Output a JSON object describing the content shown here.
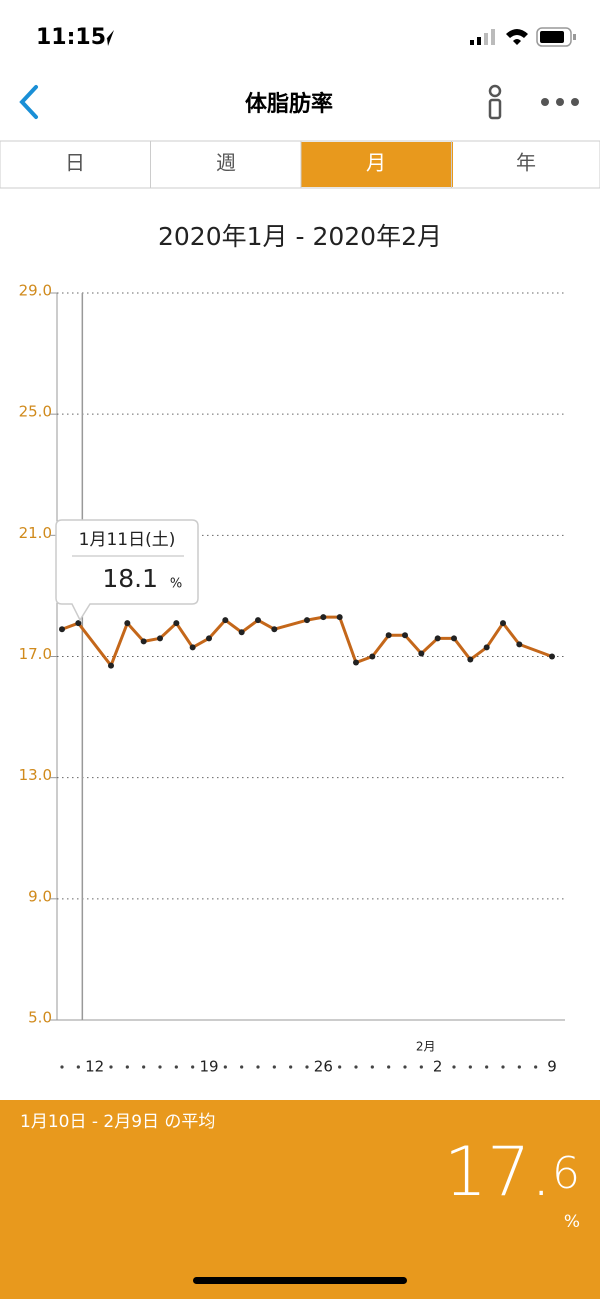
{
  "status_bar": {
    "time": "11:15"
  },
  "nav": {
    "title": "体脂肪率"
  },
  "tabs": [
    "日",
    "週",
    "月",
    "年"
  ],
  "selected_tab": 2,
  "chart_data": {
    "type": "line",
    "title": "2020年1月 - 2020年2月",
    "color": "#c4671a",
    "grid": true,
    "x": [
      "1月10日",
      "1月11日",
      "1月13日",
      "1月14日",
      "1月15日",
      "1月16日",
      "1月17日",
      "1月18日",
      "1月19日",
      "1月20日",
      "1月21日",
      "1月22日",
      "1月23日",
      "1月25日",
      "1月26日",
      "1月27日",
      "1月28日",
      "1月29日",
      "1月30日",
      "1月31日",
      "2月1日",
      "2月2日",
      "2月3日",
      "2月4日",
      "2月5日",
      "2月6日",
      "2月7日",
      "2月9日"
    ],
    "values": [
      17.9,
      18.1,
      16.7,
      18.1,
      17.5,
      17.6,
      18.1,
      17.3,
      17.6,
      18.2,
      17.8,
      18.2,
      17.9,
      18.2,
      18.3,
      18.3,
      16.8,
      17.0,
      17.7,
      17.7,
      17.1,
      17.6,
      17.6,
      16.9,
      17.3,
      18.1,
      17.4,
      17.0
    ],
    "xlim": [
      "1月10日",
      "2月9日"
    ],
    "xticks": [
      {
        "value": "1月12日",
        "label": "12"
      },
      {
        "value": "1月19日",
        "label": "19"
      },
      {
        "value": "1月26日",
        "label": "26"
      },
      {
        "value": "2月2日",
        "label": "2"
      },
      {
        "value": "2月9日",
        "label": "9"
      }
    ],
    "month_label": {
      "value": "2月2日",
      "label": "2月"
    },
    "ylim": [
      5,
      29
    ],
    "yticks": [
      {
        "value": 29,
        "label": "29.0"
      },
      {
        "value": 25,
        "label": "25.0"
      },
      {
        "value": 21,
        "label": "21.0"
      },
      {
        "value": 17,
        "label": "17.0"
      },
      {
        "value": 13,
        "label": "13.0"
      },
      {
        "value": 9,
        "label": "9.0"
      },
      {
        "value": 5,
        "label": "5.0"
      }
    ],
    "tooltip": {
      "date": "1月11日(土)",
      "index": 1,
      "unit": "%"
    }
  },
  "average": {
    "label": "1月10日 - 2月9日 の平均",
    "value": 17.6,
    "unit": "%"
  }
}
